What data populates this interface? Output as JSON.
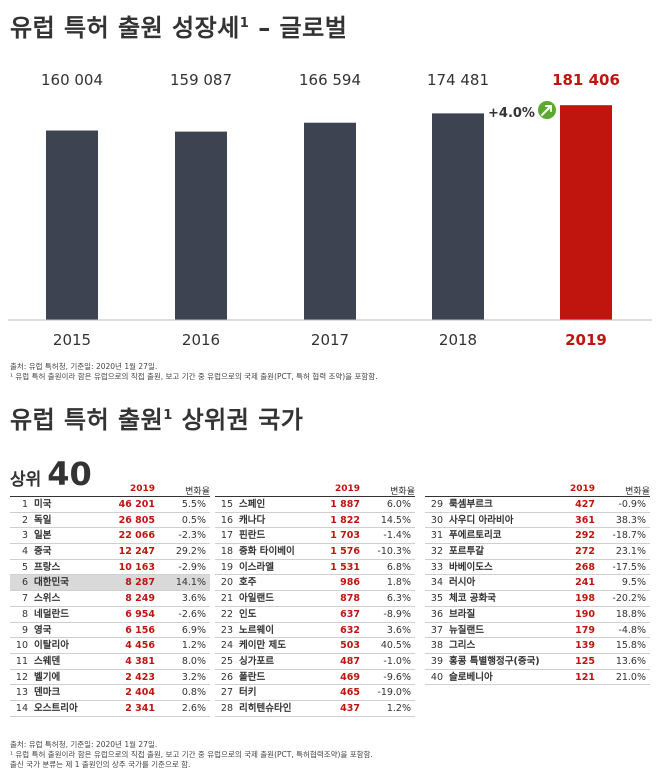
{
  "title_top": "유럽 특허 출원 성장세",
  "title_top_sup": "1",
  "title_top_suffix": " – 글로벌",
  "chart_data": {
    "type": "bar",
    "categories": [
      "2015",
      "2016",
      "2017",
      "2018",
      "2019"
    ],
    "values": [
      160004,
      159087,
      166594,
      174481,
      181406
    ],
    "value_labels": [
      "160 004",
      "159 087",
      "166 594",
      "174 481",
      "181 406"
    ],
    "highlight_index": 4,
    "annotation": "+4.0%",
    "ylim": [
      0,
      190000
    ],
    "colors": {
      "bar": "#3d4350",
      "highlight": "#c0150f",
      "arrow": "#5aaa2e"
    }
  },
  "source1": "출처: 유럽 특허청, 기준일: 2020년 1월 27일.",
  "footnote1": "¹ 유럽 특허 출원이라 함은 유럽으로의 직접 출원, 보고 기간 중 유럽으로의 국제 출원(PCT, 특허 협력 조약)을 포함함.",
  "title_bottom": "유럽 특허 출원",
  "title_bottom_sup": "1",
  "title_bottom_suffix": " 상위권 국가",
  "top_label_prefix": "상위 ",
  "top_label_num": "40",
  "col_year": "2019",
  "col_change": "변화율",
  "countries": [
    {
      "rank": "1",
      "name": "미국",
      "value": "46 201",
      "change": "5.5%"
    },
    {
      "rank": "2",
      "name": "독일",
      "value": "26 805",
      "change": "0.5%"
    },
    {
      "rank": "3",
      "name": "일본",
      "value": "22 066",
      "change": "-2.3%"
    },
    {
      "rank": "4",
      "name": "중국",
      "value": "12 247",
      "change": "29.2%"
    },
    {
      "rank": "5",
      "name": "프랑스",
      "value": "10 163",
      "change": "-2.9%"
    },
    {
      "rank": "6",
      "name": "대한민국",
      "value": "8 287",
      "change": "14.1%"
    },
    {
      "rank": "7",
      "name": "스위스",
      "value": "8 249",
      "change": "3.6%"
    },
    {
      "rank": "8",
      "name": "네덜란드",
      "value": "6 954",
      "change": "-2.6%"
    },
    {
      "rank": "9",
      "name": "영국",
      "value": "6 156",
      "change": "6.9%"
    },
    {
      "rank": "10",
      "name": "이탈리아",
      "value": "4 456",
      "change": "1.2%"
    },
    {
      "rank": "11",
      "name": "스웨덴",
      "value": "4 381",
      "change": "8.0%"
    },
    {
      "rank": "12",
      "name": "벨기에",
      "value": "2 423",
      "change": "3.2%"
    },
    {
      "rank": "13",
      "name": "덴마크",
      "value": "2 404",
      "change": "0.8%"
    },
    {
      "rank": "14",
      "name": "오스트리아",
      "value": "2 341",
      "change": "2.6%"
    },
    {
      "rank": "15",
      "name": "스페인",
      "value": "1 887",
      "change": "6.0%"
    },
    {
      "rank": "16",
      "name": "캐나다",
      "value": "1 822",
      "change": "14.5%"
    },
    {
      "rank": "17",
      "name": "핀란드",
      "value": "1 703",
      "change": "-1.4%"
    },
    {
      "rank": "18",
      "name": "중화 타이베이",
      "value": "1 576",
      "change": "-10.3%"
    },
    {
      "rank": "19",
      "name": "이스라엘",
      "value": "1 531",
      "change": "6.8%"
    },
    {
      "rank": "20",
      "name": "호주",
      "value": "986",
      "change": "1.8%"
    },
    {
      "rank": "21",
      "name": "아일랜드",
      "value": "878",
      "change": "6.3%"
    },
    {
      "rank": "22",
      "name": "인도",
      "value": "637",
      "change": "-8.9%"
    },
    {
      "rank": "23",
      "name": "노르웨이",
      "value": "632",
      "change": "3.6%"
    },
    {
      "rank": "24",
      "name": "케이만 제도",
      "value": "503",
      "change": "40.5%"
    },
    {
      "rank": "25",
      "name": "싱가포르",
      "value": "487",
      "change": "-1.0%"
    },
    {
      "rank": "26",
      "name": "폴란드",
      "value": "469",
      "change": "-9.6%"
    },
    {
      "rank": "27",
      "name": "터키",
      "value": "465",
      "change": "-19.0%"
    },
    {
      "rank": "28",
      "name": "리히텐슈타인",
      "value": "437",
      "change": "1.2%"
    },
    {
      "rank": "29",
      "name": "룩셈부르크",
      "value": "427",
      "change": "-0.9%"
    },
    {
      "rank": "30",
      "name": "사우디 아라비아",
      "value": "361",
      "change": "38.3%"
    },
    {
      "rank": "31",
      "name": "푸에르토리코",
      "value": "292",
      "change": "-18.7%"
    },
    {
      "rank": "32",
      "name": "포르투갈",
      "value": "272",
      "change": "23.1%"
    },
    {
      "rank": "33",
      "name": "바베이도스",
      "value": "268",
      "change": "-17.5%"
    },
    {
      "rank": "34",
      "name": "러시아",
      "value": "241",
      "change": "9.5%"
    },
    {
      "rank": "35",
      "name": "체코 공화국",
      "value": "198",
      "change": "-20.2%"
    },
    {
      "rank": "36",
      "name": "브라질",
      "value": "190",
      "change": "18.8%"
    },
    {
      "rank": "37",
      "name": "뉴질랜드",
      "value": "179",
      "change": "-4.8%"
    },
    {
      "rank": "38",
      "name": "그리스",
      "value": "139",
      "change": "15.8%"
    },
    {
      "rank": "39",
      "name": "홍콩 특별행정구(중국)",
      "value": "125",
      "change": "13.6%"
    },
    {
      "rank": "40",
      "name": "슬로베니아",
      "value": "121",
      "change": "21.0%"
    }
  ],
  "highlight_rank": "6",
  "source2": "출처: 유럽 특허청, 기준일: 2020년 1월 27일.",
  "footnote2a": "¹ 유럽 특허 출원이라 함은 유럽으로의 직접 출원, 보고 기간 중 유럽으로의 국제 출원(PCT, 특허협력조약)을 포함함.",
  "footnote2b": "출신 국가 분류는 제 1 출원인의 상주 국가를 기준으로 함."
}
